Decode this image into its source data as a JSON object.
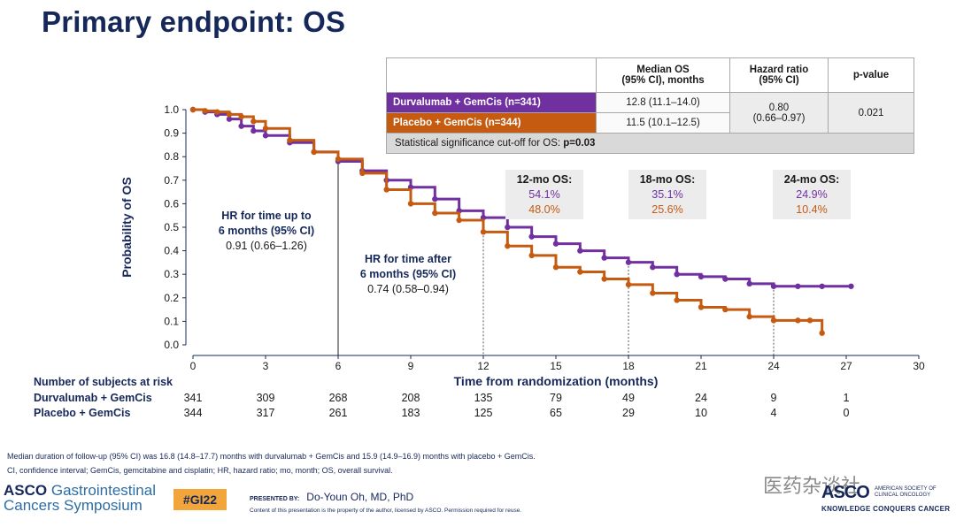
{
  "title": "Primary endpoint: OS",
  "summary_table": {
    "col_median": "Median  OS\n(95% CI), months",
    "col_median_l1": "Median  OS",
    "col_median_l2": "(95% CI), months",
    "col_hr_l1": "Hazard ratio",
    "col_hr_l2": "(95% CI)",
    "col_p": "p-value",
    "row1_label": "Durvalumab + GemCis (n=341)",
    "row1_median": "12.8 (11.1–14.0)",
    "row2_label": "Placebo + GemCis (n=344)",
    "row2_median": "11.5 (10.1–12.5)",
    "hr_l1": "0.80",
    "hr_l2": "(0.66–0.97)",
    "pvalue": "0.021",
    "footer_text": "Statistical significance cut-off for OS: ",
    "footer_bold": "p=0.03"
  },
  "os_boxes": [
    {
      "title": "12-mo OS:",
      "durva": "54.1%",
      "placebo": "48.0%"
    },
    {
      "title": "18-mo OS:",
      "durva": "35.1%",
      "placebo": "25.6%"
    },
    {
      "title": "24-mo OS:",
      "durva": "24.9%",
      "placebo": "10.4%"
    }
  ],
  "hr_early": {
    "l1": "HR for time up to",
    "l2": "6 months (95% CI)",
    "l3": "0.91 (0.66–1.26)"
  },
  "hr_late": {
    "l1": "HR for time after",
    "l2": "6 months (95% CI)",
    "l3": "0.74 (0.58–0.94)"
  },
  "risk": {
    "header": "Number of subjects at risk",
    "durva_label": "Durvalumab + GemCis",
    "placebo_label": "Placebo + GemCis",
    "durva": [
      "341",
      "309",
      "268",
      "208",
      "135",
      "79",
      "49",
      "24",
      "9",
      "1"
    ],
    "placebo": [
      "344",
      "317",
      "261",
      "183",
      "125",
      "65",
      "29",
      "10",
      "4",
      "0"
    ]
  },
  "footnote1": "Median duration of follow-up (95% CI) was 16.8 (14.8–17.7) months with durvalumab + GemCis and 15.9 (14.9–16.9) months with placebo + GemCis.",
  "footnote2": "CI, confidence interval; GemCis, gemcitabine and cisplatin; HR, hazard ratio; mo, month; OS, overall survival.",
  "branding": {
    "asco_left_1": "ASCO",
    "asco_left_2": "Gastrointestinal",
    "asco_left_3": "Cancers Symposium",
    "hashtag": "#GI22",
    "presented_by": "PRESENTED BY:",
    "presenter": "Do-Youn Oh, MD, PhD",
    "content_note": "Content of this presentation is the property of the author, licensed by ASCO. Permission required for reuse.",
    "watermark": "医药杂谈社",
    "asco_right": "ASCO",
    "asco_right_sub": "AMERICAN SOCIETY OF CLINICAL ONCOLOGY",
    "asco_right_tag": "KNOWLEDGE CONQUERS CANCER"
  },
  "colors": {
    "durva": "#7030a0",
    "placebo": "#c55a11",
    "axis": "#16285a"
  },
  "chart_data": {
    "type": "line",
    "title": "",
    "xlabel": "Time from randomization (months)",
    "ylabel": "Probability of OS",
    "xlim": [
      0,
      30
    ],
    "ylim": [
      0.0,
      1.0
    ],
    "xticks": [
      0,
      3,
      6,
      9,
      12,
      15,
      18,
      21,
      24,
      27,
      30
    ],
    "yticks": [
      "0.0",
      "0.1",
      "0.2",
      "0.3",
      "0.4",
      "0.5",
      "0.6",
      "0.7",
      "0.8",
      "0.9",
      "1.0"
    ],
    "reference_x": [
      6,
      12,
      18,
      24
    ],
    "series": [
      {
        "name": "Durvalumab + GemCis",
        "color": "#7030a0",
        "x": [
          0,
          0.5,
          1,
          1.5,
          2,
          2.5,
          3,
          4,
          5,
          6,
          7,
          8,
          9,
          10,
          11,
          12,
          13,
          14,
          15,
          16,
          17,
          18,
          19,
          20,
          21,
          22,
          23,
          24,
          25,
          26,
          27.2
        ],
        "y": [
          1.0,
          0.99,
          0.98,
          0.96,
          0.93,
          0.91,
          0.89,
          0.86,
          0.82,
          0.78,
          0.74,
          0.7,
          0.67,
          0.62,
          0.57,
          0.541,
          0.5,
          0.46,
          0.43,
          0.4,
          0.37,
          0.351,
          0.33,
          0.3,
          0.29,
          0.28,
          0.26,
          0.249,
          0.249,
          0.249,
          0.249
        ]
      },
      {
        "name": "Placebo + GemCis",
        "color": "#c55a11",
        "x": [
          0,
          0.5,
          1,
          1.5,
          2,
          2.5,
          3,
          4,
          5,
          6,
          7,
          8,
          9,
          10,
          11,
          12,
          13,
          14,
          15,
          16,
          17,
          18,
          19,
          20,
          21,
          22,
          23,
          24,
          25,
          25.5,
          26
        ],
        "y": [
          1.0,
          0.995,
          0.99,
          0.98,
          0.97,
          0.95,
          0.92,
          0.87,
          0.82,
          0.79,
          0.73,
          0.66,
          0.6,
          0.56,
          0.53,
          0.48,
          0.42,
          0.38,
          0.33,
          0.31,
          0.28,
          0.256,
          0.22,
          0.19,
          0.16,
          0.15,
          0.12,
          0.104,
          0.104,
          0.104,
          0.05
        ]
      }
    ]
  }
}
